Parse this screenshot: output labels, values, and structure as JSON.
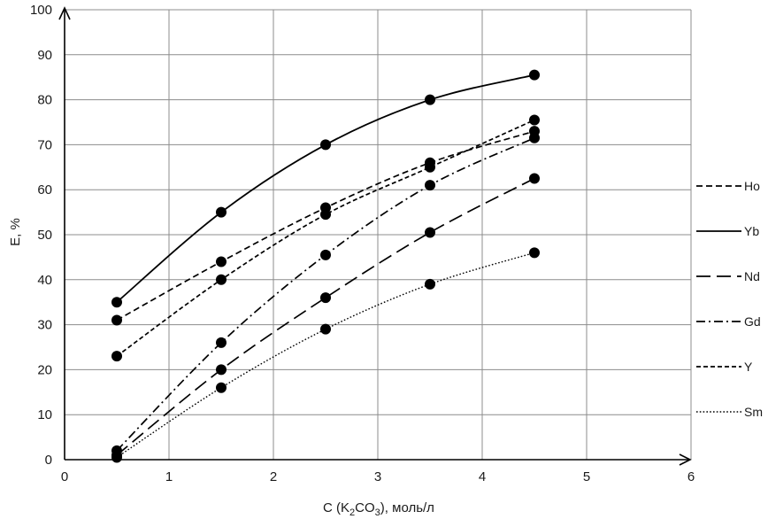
{
  "chart_data": {
    "type": "scatter",
    "title": "",
    "xlabel": {
      "prefix": "C (K",
      "sub1": "2",
      "mid": "CO",
      "sub2": "3",
      "suffix": "), моль/л"
    },
    "ylabel": "E, %",
    "xlim": [
      0,
      6
    ],
    "ylim": [
      0,
      100
    ],
    "x_ticks": [
      "0",
      "1",
      "2",
      "3",
      "4",
      "5",
      "6"
    ],
    "y_ticks": [
      "0",
      "10",
      "20",
      "30",
      "40",
      "50",
      "60",
      "70",
      "80",
      "90",
      "100"
    ],
    "grid": true,
    "legend_position": "right",
    "x": [
      0.5,
      1.5,
      2.5,
      3.5,
      4.5
    ],
    "series": [
      {
        "name": "Ho",
        "values": [
          31,
          44,
          56,
          66,
          73
        ],
        "line_style": "dashed"
      },
      {
        "name": "Yb",
        "values": [
          35,
          55,
          70,
          80,
          85.5
        ],
        "line_style": "solid"
      },
      {
        "name": "Nd",
        "values": [
          1,
          20,
          36,
          50.5,
          62.5
        ],
        "line_style": "long-dashed"
      },
      {
        "name": "Gd",
        "values": [
          2,
          26,
          45.5,
          61,
          71.5
        ],
        "line_style": "dash-dot"
      },
      {
        "name": "Y",
        "values": [
          23,
          40,
          54.5,
          65,
          75.5
        ],
        "line_style": "short-dashed"
      },
      {
        "name": "Sm",
        "values": [
          0.5,
          16,
          29,
          39,
          46
        ],
        "line_style": "dotted"
      }
    ]
  }
}
